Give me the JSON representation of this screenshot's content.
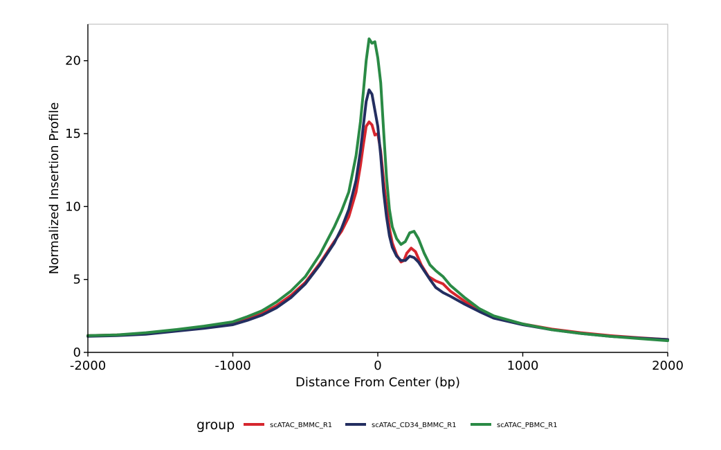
{
  "chart_data": {
    "type": "line",
    "title": "",
    "xlabel": "Distance From Center (bp)",
    "ylabel": "Normalized Insertion Profile",
    "xlim": [
      -2000,
      2000
    ],
    "ylim": [
      0,
      22.5
    ],
    "xticks": [
      {
        "value": -2000,
        "label": "-2000"
      },
      {
        "value": -1000,
        "label": "-1000"
      },
      {
        "value": 0,
        "label": "0"
      },
      {
        "value": 1000,
        "label": "1000"
      },
      {
        "value": 2000,
        "label": "2000"
      }
    ],
    "yticks": [
      {
        "value": 0,
        "label": "0"
      },
      {
        "value": 5,
        "label": "5"
      },
      {
        "value": 10,
        "label": "10"
      },
      {
        "value": 15,
        "label": "15"
      },
      {
        "value": 20,
        "label": "20"
      }
    ],
    "grid": false,
    "legend": {
      "title": "group",
      "position": "bottom"
    },
    "series": [
      {
        "name": "scATAC_BMMC_R1",
        "color": "#d6262e",
        "points": [
          [
            -2000,
            1.15
          ],
          [
            -1800,
            1.2
          ],
          [
            -1600,
            1.3
          ],
          [
            -1400,
            1.5
          ],
          [
            -1200,
            1.75
          ],
          [
            -1000,
            2.0
          ],
          [
            -900,
            2.3
          ],
          [
            -800,
            2.65
          ],
          [
            -700,
            3.2
          ],
          [
            -600,
            3.9
          ],
          [
            -500,
            4.8
          ],
          [
            -400,
            6.1
          ],
          [
            -300,
            7.6
          ],
          [
            -250,
            8.3
          ],
          [
            -200,
            9.3
          ],
          [
            -150,
            11.0
          ],
          [
            -120,
            12.8
          ],
          [
            -100,
            14.2
          ],
          [
            -80,
            15.5
          ],
          [
            -60,
            15.8
          ],
          [
            -40,
            15.6
          ],
          [
            -20,
            14.9
          ],
          [
            0,
            15.0
          ],
          [
            20,
            13.8
          ],
          [
            40,
            11.8
          ],
          [
            60,
            10.0
          ],
          [
            80,
            8.5
          ],
          [
            100,
            7.5
          ],
          [
            130,
            6.7
          ],
          [
            160,
            6.2
          ],
          [
            180,
            6.3
          ],
          [
            200,
            6.8
          ],
          [
            230,
            7.15
          ],
          [
            260,
            6.9
          ],
          [
            300,
            6.0
          ],
          [
            350,
            5.2
          ],
          [
            400,
            4.9
          ],
          [
            450,
            4.7
          ],
          [
            500,
            4.2
          ],
          [
            600,
            3.5
          ],
          [
            700,
            2.85
          ],
          [
            800,
            2.4
          ],
          [
            1000,
            1.95
          ],
          [
            1200,
            1.6
          ],
          [
            1400,
            1.35
          ],
          [
            1600,
            1.15
          ],
          [
            1800,
            1.0
          ],
          [
            2000,
            0.88
          ]
        ]
      },
      {
        "name": "scATAC_CD34_BMMC_R1",
        "color": "#232e60",
        "points": [
          [
            -2000,
            1.1
          ],
          [
            -1800,
            1.15
          ],
          [
            -1600,
            1.25
          ],
          [
            -1400,
            1.45
          ],
          [
            -1200,
            1.65
          ],
          [
            -1000,
            1.9
          ],
          [
            -900,
            2.2
          ],
          [
            -800,
            2.55
          ],
          [
            -700,
            3.05
          ],
          [
            -600,
            3.75
          ],
          [
            -500,
            4.7
          ],
          [
            -400,
            6.0
          ],
          [
            -300,
            7.5
          ],
          [
            -250,
            8.5
          ],
          [
            -200,
            9.8
          ],
          [
            -150,
            11.8
          ],
          [
            -120,
            13.8
          ],
          [
            -100,
            15.5
          ],
          [
            -80,
            17.2
          ],
          [
            -60,
            18.0
          ],
          [
            -40,
            17.7
          ],
          [
            -20,
            16.6
          ],
          [
            0,
            15.5
          ],
          [
            20,
            13.5
          ],
          [
            40,
            11.0
          ],
          [
            60,
            9.3
          ],
          [
            80,
            8.0
          ],
          [
            100,
            7.2
          ],
          [
            130,
            6.6
          ],
          [
            160,
            6.3
          ],
          [
            190,
            6.3
          ],
          [
            220,
            6.6
          ],
          [
            250,
            6.5
          ],
          [
            280,
            6.2
          ],
          [
            320,
            5.6
          ],
          [
            360,
            5.0
          ],
          [
            400,
            4.45
          ],
          [
            450,
            4.1
          ],
          [
            500,
            3.85
          ],
          [
            600,
            3.3
          ],
          [
            700,
            2.8
          ],
          [
            800,
            2.35
          ],
          [
            1000,
            1.9
          ],
          [
            1200,
            1.55
          ],
          [
            1400,
            1.3
          ],
          [
            1600,
            1.1
          ],
          [
            1800,
            0.98
          ],
          [
            2000,
            0.88
          ]
        ]
      },
      {
        "name": "scATAC_PBMC_R1",
        "color": "#2a8a45",
        "points": [
          [
            -2000,
            1.15
          ],
          [
            -1800,
            1.2
          ],
          [
            -1600,
            1.35
          ],
          [
            -1400,
            1.55
          ],
          [
            -1200,
            1.8
          ],
          [
            -1000,
            2.1
          ],
          [
            -900,
            2.45
          ],
          [
            -800,
            2.85
          ],
          [
            -700,
            3.45
          ],
          [
            -600,
            4.2
          ],
          [
            -500,
            5.2
          ],
          [
            -400,
            6.7
          ],
          [
            -300,
            8.6
          ],
          [
            -250,
            9.7
          ],
          [
            -200,
            11.0
          ],
          [
            -150,
            13.5
          ],
          [
            -120,
            15.8
          ],
          [
            -100,
            17.8
          ],
          [
            -80,
            20.0
          ],
          [
            -60,
            21.5
          ],
          [
            -40,
            21.2
          ],
          [
            -20,
            21.3
          ],
          [
            0,
            20.2
          ],
          [
            20,
            18.5
          ],
          [
            40,
            15.2
          ],
          [
            60,
            12.0
          ],
          [
            80,
            9.8
          ],
          [
            100,
            8.6
          ],
          [
            130,
            7.8
          ],
          [
            160,
            7.4
          ],
          [
            190,
            7.6
          ],
          [
            220,
            8.2
          ],
          [
            250,
            8.3
          ],
          [
            280,
            7.8
          ],
          [
            320,
            6.8
          ],
          [
            360,
            6.0
          ],
          [
            400,
            5.6
          ],
          [
            450,
            5.2
          ],
          [
            500,
            4.6
          ],
          [
            600,
            3.75
          ],
          [
            700,
            3.0
          ],
          [
            800,
            2.5
          ],
          [
            1000,
            1.95
          ],
          [
            1200,
            1.55
          ],
          [
            1400,
            1.3
          ],
          [
            1600,
            1.1
          ],
          [
            1800,
            0.95
          ],
          [
            2000,
            0.8
          ]
        ]
      }
    ]
  }
}
